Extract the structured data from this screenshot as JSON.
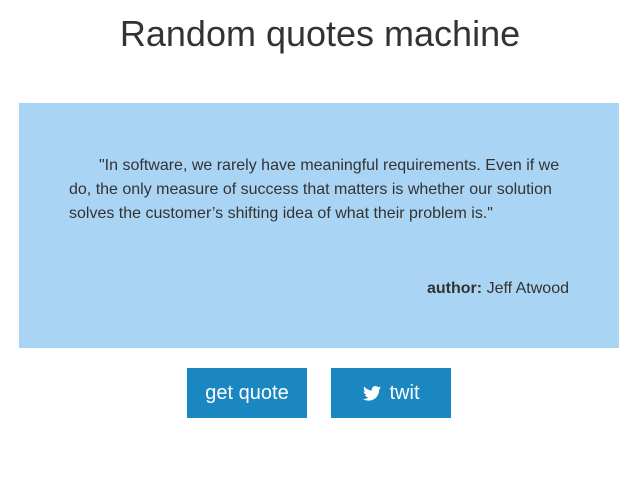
{
  "header": {
    "title": "Random quotes machine"
  },
  "quote": {
    "text": "\"In software, we rarely have meaningful requirements. Even if we do, the only measure of success that matters is whether our solution solves the customer’s shifting idea of what their problem is.\"",
    "author_label": "author:",
    "author_name": "Jeff Atwood"
  },
  "actions": {
    "get_quote_label": "get quote",
    "twit_label": "twit",
    "twit_icon": "twitter-bird-icon"
  },
  "colors": {
    "card_background": "#aad4f3",
    "button_background": "#1a87c0",
    "text": "#333333"
  }
}
